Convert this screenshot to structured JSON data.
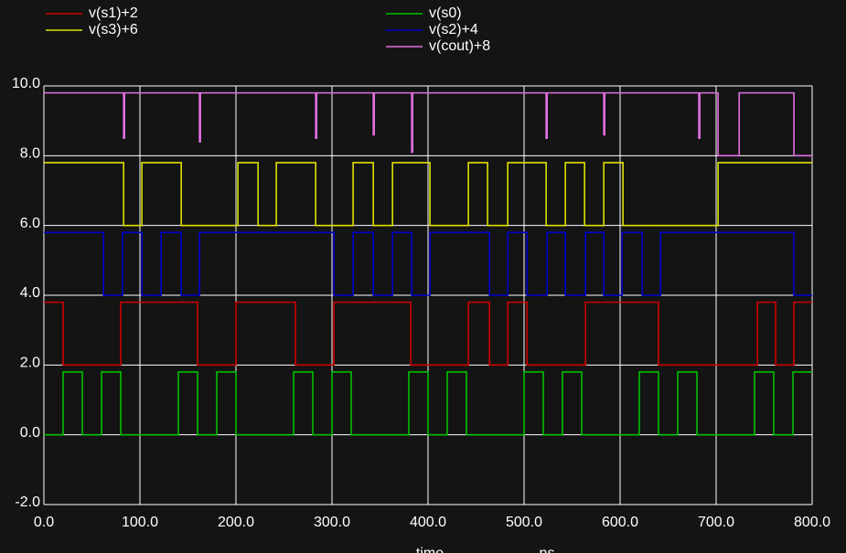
{
  "chart_data": {
    "type": "line",
    "step": true,
    "xlabel": "time",
    "xunit": "ns",
    "xlim": [
      0,
      800
    ],
    "xticks": [
      {
        "value": 0,
        "label": "0.0"
      },
      {
        "value": 100,
        "label": "100.0"
      },
      {
        "value": 200,
        "label": "200.0"
      },
      {
        "value": 300,
        "label": "300.0"
      },
      {
        "value": 400,
        "label": "400.0"
      },
      {
        "value": 500,
        "label": "500.0"
      },
      {
        "value": 600,
        "label": "600.0"
      },
      {
        "value": 700,
        "label": "700.0"
      },
      {
        "value": 800,
        "label": "800.0"
      }
    ],
    "ylim": [
      -2,
      10
    ],
    "yticks": [
      {
        "value": -2,
        "label": "-2.0"
      },
      {
        "value": 0,
        "label": "0.0"
      },
      {
        "value": 2,
        "label": "2.0"
      },
      {
        "value": 4,
        "label": "4.0"
      },
      {
        "value": 6,
        "label": "6.0"
      },
      {
        "value": 8,
        "label": "8.0"
      },
      {
        "value": 10,
        "label": "10.0"
      }
    ],
    "grid": true,
    "series": [
      {
        "name": "v(s1)+2",
        "color": "#d00000",
        "x": [
          0,
          20,
          20,
          80,
          80,
          160,
          160,
          200,
          200,
          262,
          262,
          302,
          302,
          382,
          382,
          442,
          442,
          464,
          464,
          483,
          483,
          503,
          503,
          564,
          564,
          640,
          640,
          743,
          743,
          762,
          762,
          781,
          781,
          800
        ],
        "values": [
          3.8,
          3.8,
          2,
          2,
          3.8,
          3.8,
          2,
          2,
          3.8,
          3.8,
          2,
          2,
          3.8,
          3.8,
          2,
          2,
          3.8,
          3.8,
          2,
          2,
          3.8,
          3.8,
          2,
          2,
          3.8,
          3.8,
          2,
          2,
          3.8,
          3.8,
          2,
          2,
          3.8,
          3.8
        ]
      },
      {
        "name": "v(s3)+6",
        "color": "#e0e000",
        "x": [
          0,
          83,
          83,
          102,
          102,
          143,
          143,
          202,
          202,
          223,
          223,
          242,
          242,
          283,
          283,
          322,
          322,
          343,
          343,
          363,
          363,
          402,
          402,
          442,
          442,
          462,
          462,
          483,
          483,
          523,
          523,
          543,
          543,
          563,
          563,
          583,
          583,
          603,
          603,
          702,
          702,
          800
        ],
        "values": [
          7.8,
          7.8,
          6,
          6,
          7.8,
          7.8,
          6,
          6,
          7.8,
          7.8,
          6,
          6,
          7.8,
          7.8,
          6,
          6,
          7.8,
          7.8,
          6,
          6,
          7.8,
          7.8,
          6,
          6,
          7.8,
          7.8,
          6,
          6,
          7.8,
          7.8,
          6,
          6,
          7.8,
          7.8,
          6,
          6,
          7.8,
          7.8,
          6,
          6,
          7.8,
          7.8
        ]
      },
      {
        "name": "v(s0)",
        "color": "#00c000",
        "x": [
          0,
          20,
          20,
          40,
          40,
          60,
          60,
          80,
          80,
          140,
          140,
          160,
          160,
          180,
          180,
          200,
          200,
          260,
          260,
          280,
          280,
          300,
          300,
          320,
          320,
          380,
          380,
          400,
          400,
          420,
          420,
          440,
          440,
          500,
          500,
          520,
          520,
          540,
          540,
          560,
          560,
          620,
          620,
          640,
          640,
          660,
          660,
          680,
          680,
          740,
          740,
          760,
          760,
          780,
          780,
          800
        ],
        "values": [
          0,
          0,
          1.8,
          1.8,
          0,
          0,
          1.8,
          1.8,
          0,
          0,
          1.8,
          1.8,
          0,
          0,
          1.8,
          1.8,
          0,
          0,
          1.8,
          1.8,
          0,
          0,
          1.8,
          1.8,
          0,
          0,
          1.8,
          1.8,
          0,
          0,
          1.8,
          1.8,
          0,
          0,
          1.8,
          1.8,
          0,
          0,
          1.8,
          1.8,
          0,
          0,
          1.8,
          1.8,
          0,
          0,
          1.8,
          1.8,
          0,
          0,
          1.8,
          1.8,
          0,
          0,
          1.8,
          1.8
        ]
      },
      {
        "name": "v(s2)+4",
        "color": "#0000d0",
        "x": [
          0,
          62,
          62,
          82,
          82,
          102,
          102,
          122,
          122,
          143,
          143,
          162,
          162,
          302,
          302,
          322,
          322,
          343,
          343,
          363,
          363,
          383,
          383,
          402,
          402,
          464,
          464,
          483,
          483,
          503,
          503,
          524,
          524,
          543,
          543,
          564,
          564,
          583,
          583,
          602,
          602,
          623,
          623,
          642,
          642,
          781,
          781,
          800
        ],
        "values": [
          5.8,
          5.8,
          4,
          4,
          5.8,
          5.8,
          4,
          4,
          5.8,
          5.8,
          4,
          4,
          5.8,
          5.8,
          4,
          4,
          5.8,
          5.8,
          4,
          4,
          5.8,
          5.8,
          4,
          4,
          5.8,
          5.8,
          4,
          4,
          5.8,
          5.8,
          4,
          4,
          5.8,
          5.8,
          4,
          4,
          5.8,
          5.8,
          4,
          4,
          5.8,
          5.8,
          4,
          4,
          5.8,
          5.8,
          4,
          4
        ]
      },
      {
        "name": "v(cout)+8",
        "color": "#e070e0",
        "x": [
          0,
          83,
          83,
          84,
          84,
          162,
          162,
          163,
          163,
          283,
          283,
          284,
          284,
          343,
          343,
          344,
          344,
          383,
          383,
          384,
          384,
          523,
          523,
          524,
          524,
          583,
          583,
          584,
          584,
          682,
          682,
          683,
          683,
          702,
          702,
          724,
          724,
          781,
          781,
          800
        ],
        "values": [
          9.8,
          9.8,
          8.5,
          8.5,
          9.8,
          9.8,
          8.4,
          8.4,
          9.8,
          9.8,
          8.5,
          8.5,
          9.8,
          9.8,
          8.6,
          8.6,
          9.8,
          9.8,
          8.1,
          8.1,
          9.8,
          9.8,
          8.5,
          8.5,
          9.8,
          9.8,
          8.6,
          8.6,
          9.8,
          9.8,
          8.5,
          8.5,
          9.8,
          9.8,
          8,
          8,
          9.8,
          9.8,
          8,
          8
        ]
      }
    ]
  }
}
